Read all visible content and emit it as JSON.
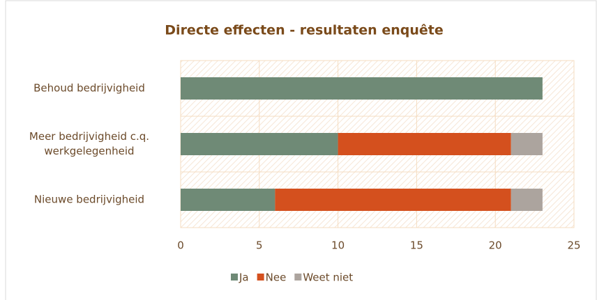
{
  "chart_data": {
    "type": "bar",
    "orientation": "horizontal",
    "stacked": true,
    "title": "Directe effecten - resultaten enquête",
    "categories": [
      "Behoud bedrijvigheid",
      "Meer bedrijvigheid c.q. werkgelegenheid",
      "Nieuwe bedrijvigheid"
    ],
    "series": [
      {
        "name": "Ja",
        "color": "#6f8a76",
        "values": [
          23,
          10,
          6
        ]
      },
      {
        "name": "Nee",
        "color": "#d4501e",
        "values": [
          0,
          11,
          15
        ]
      },
      {
        "name": "Weet niet",
        "color": "#aca49e",
        "values": [
          0,
          2,
          2
        ]
      }
    ],
    "xlim": [
      0,
      25
    ],
    "xticks": [
      0,
      5,
      10,
      15,
      20,
      25
    ],
    "grid": true,
    "legend": "bottom"
  }
}
